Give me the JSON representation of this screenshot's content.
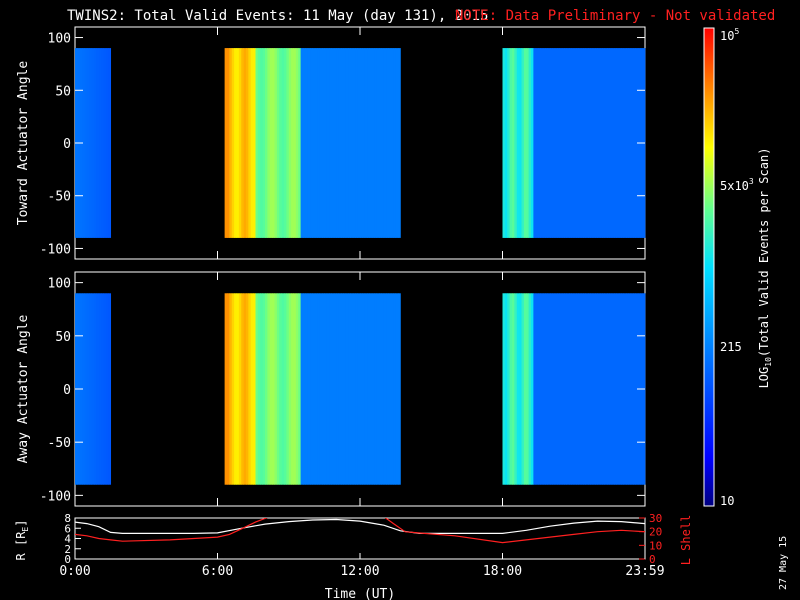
{
  "title": "TWINS2: Total Valid Events: 11 May (day 131), 2015",
  "note": "NOTE: Data Preliminary - Not validated",
  "date_stamp": "27 May 15",
  "colors": {
    "background": "#000000",
    "axes": "#ffffff",
    "note": "#ff2020",
    "lshell": "#ff2020",
    "radius": "#ffffff"
  },
  "colorbar": {
    "label_html_parts": [
      "LOG",
      "10",
      "(Total Valid Events per Scan)"
    ],
    "tick_labels": [
      "10",
      "215",
      "5x10",
      "3",
      "10",
      "5"
    ],
    "scale": "log",
    "range": [
      10,
      100000
    ]
  },
  "chart_data": [
    {
      "type": "heatmap",
      "ylabel": "Toward Actuator Angle",
      "xlim": [
        0,
        24
      ],
      "ylim": [
        -110,
        110
      ],
      "y_ticks": [
        "-100",
        "-50",
        "0",
        "50",
        "100"
      ],
      "data_y_range": [
        -90,
        90
      ],
      "x_ticks": [
        "0:00",
        "6:00",
        "12:00",
        "18:00",
        "23:59"
      ],
      "data_blocks": [
        {
          "start": "0:00",
          "end": "1:30",
          "level": "low (~150-400)"
        },
        {
          "start": "6:20",
          "end": "13:40",
          "level": "high (~5x10^4) early, falling to ~200"
        },
        {
          "start": "18:00",
          "end": "24:00",
          "level": "mid (~2x10^3) early, falling to ~150"
        }
      ]
    },
    {
      "type": "heatmap",
      "ylabel": "Away Actuator Angle",
      "xlim": [
        0,
        24
      ],
      "ylim": [
        -110,
        110
      ],
      "y_ticks": [
        "-100",
        "-50",
        "0",
        "50",
        "100"
      ],
      "data_y_range": [
        -90,
        90
      ],
      "x_ticks": [
        "0:00",
        "6:00",
        "12:00",
        "18:00",
        "23:59"
      ],
      "data_blocks": [
        {
          "start": "0:00",
          "end": "1:30",
          "level": "low (~150-400)"
        },
        {
          "start": "6:20",
          "end": "13:40",
          "level": "high (~5x10^4) early, falling to ~200"
        },
        {
          "start": "18:00",
          "end": "24:00",
          "level": "mid (~2x10^3) early, falling to ~150"
        }
      ]
    },
    {
      "type": "line",
      "ylabel_left": "R [R",
      "ylabel_left_sub": "E",
      "ylabel_left_end": "]",
      "ylabel_right": "L Shell",
      "xlabel": "Time (UT)",
      "x_ticks": [
        "0:00",
        "6:00",
        "12:00",
        "18:00",
        "23:59"
      ],
      "left_ticks": [
        "0",
        "2",
        "4",
        "6",
        "8"
      ],
      "right_ticks": [
        "0",
        "10",
        "20",
        "30"
      ],
      "ylim_left": [
        0,
        8
      ],
      "ylim_right": [
        0,
        30
      ],
      "series": [
        {
          "axis": "left",
          "x": [
            0,
            0.5,
            1.0,
            1.5,
            2.0,
            3.0,
            4.0,
            5.0,
            6.0,
            7.0,
            8.0,
            9.0,
            10.0,
            11.0,
            12.0,
            13.0,
            13.7,
            14.5,
            16.0,
            17.0,
            18.0,
            19.0,
            20.0,
            21.0,
            22.0,
            23.0,
            24.0
          ],
          "y": [
            7.2,
            6.9,
            6.3,
            5.2,
            5.0,
            5.0,
            5.0,
            5.0,
            5.1,
            6.0,
            6.8,
            7.3,
            7.6,
            7.7,
            7.4,
            6.6,
            5.5,
            5.0,
            5.0,
            5.0,
            5.0,
            5.6,
            6.4,
            7.0,
            7.4,
            7.3,
            6.9
          ]
        },
        {
          "axis": "right",
          "x": [
            0,
            0.5,
            1.0,
            1.5,
            2.0,
            4.0,
            6.0,
            6.5,
            7.0,
            7.6,
            8.2,
            13.0,
            13.4,
            13.9,
            14.5,
            16.0,
            18.0,
            19.0,
            20.0,
            21.0,
            22.0,
            23.0,
            24.0
          ],
          "y": [
            18,
            17,
            15,
            14,
            13,
            14,
            16,
            18,
            22,
            27,
            31,
            31,
            26,
            20,
            19,
            17,
            12,
            14,
            16,
            18,
            20,
            21,
            20
          ]
        }
      ]
    }
  ]
}
